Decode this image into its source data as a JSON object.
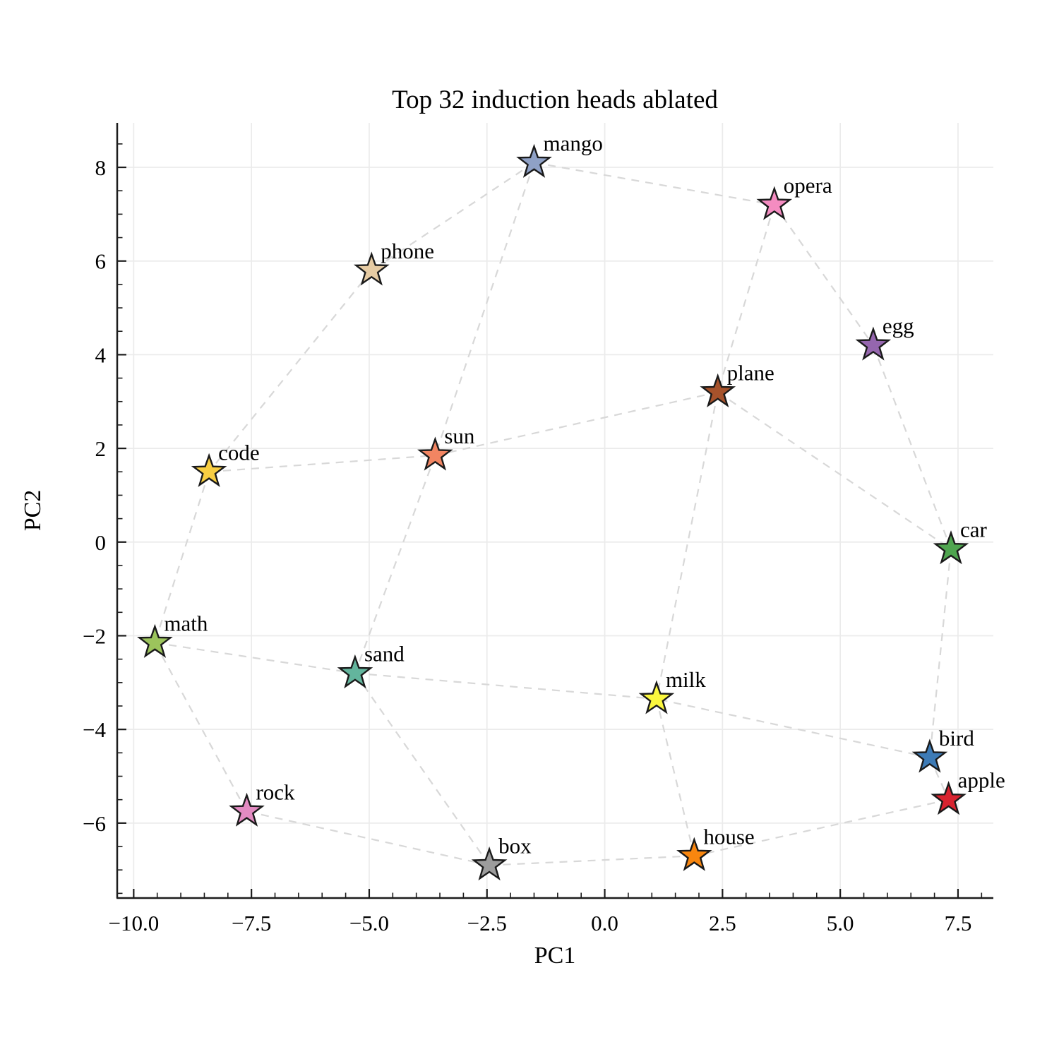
{
  "title": "Top 32 induction heads ablated",
  "chart_data": {
    "type": "scatter",
    "title": "Top 32 induction heads ablated",
    "xlabel": "PC1",
    "ylabel": "PC2",
    "xlim": [
      -10.35,
      8.25
    ],
    "ylim": [
      -7.6,
      8.95
    ],
    "grid": true,
    "legend": "none",
    "x_ticks": [
      -10.0,
      -7.5,
      -5.0,
      -2.5,
      0.0,
      2.5,
      5.0,
      7.5
    ],
    "x_tick_labels": [
      "−10.0",
      "−7.5",
      "−5.0",
      "−2.5",
      "0.0",
      "2.5",
      "5.0",
      "7.5"
    ],
    "y_ticks": [
      8,
      6,
      4,
      2,
      0,
      -2,
      -4,
      -6
    ],
    "y_tick_labels": [
      "8",
      "6",
      "4",
      "2",
      "0",
      "−2",
      "−4",
      "−6"
    ],
    "minor_tick_step": 0.5,
    "marker": "star",
    "points": [
      {
        "label": "mango",
        "x": -1.5,
        "y": 8.1,
        "color": "#8fa1c6"
      },
      {
        "label": "opera",
        "x": 3.6,
        "y": 7.2,
        "color": "#f48cc1"
      },
      {
        "label": "phone",
        "x": -4.95,
        "y": 5.8,
        "color": "#e6cba3"
      },
      {
        "label": "egg",
        "x": 5.7,
        "y": 4.2,
        "color": "#9566ae"
      },
      {
        "label": "plane",
        "x": 2.4,
        "y": 3.2,
        "color": "#a6522b"
      },
      {
        "label": "sun",
        "x": -3.6,
        "y": 1.85,
        "color": "#f28562"
      },
      {
        "label": "code",
        "x": -8.4,
        "y": 1.5,
        "color": "#f8ce42"
      },
      {
        "label": "car",
        "x": 7.35,
        "y": -0.15,
        "color": "#4fa54f"
      },
      {
        "label": "math",
        "x": -9.55,
        "y": -2.15,
        "color": "#9cc45c"
      },
      {
        "label": "sand",
        "x": -5.3,
        "y": -2.8,
        "color": "#63b59d"
      },
      {
        "label": "milk",
        "x": 1.1,
        "y": -3.35,
        "color": "#fbf73e"
      },
      {
        "label": "bird",
        "x": 6.9,
        "y": -4.6,
        "color": "#3d7bb6"
      },
      {
        "label": "apple",
        "x": 7.3,
        "y": -5.5,
        "color": "#d8232f"
      },
      {
        "label": "rock",
        "x": -7.6,
        "y": -5.75,
        "color": "#e38bc2"
      },
      {
        "label": "box",
        "x": -2.45,
        "y": -6.9,
        "color": "#9c9c9c"
      },
      {
        "label": "house",
        "x": 1.9,
        "y": -6.7,
        "color": "#f8860f"
      }
    ],
    "edges": [
      [
        "mango",
        "phone"
      ],
      [
        "mango",
        "opera"
      ],
      [
        "mango",
        "sun"
      ],
      [
        "opera",
        "egg"
      ],
      [
        "opera",
        "plane"
      ],
      [
        "egg",
        "car"
      ],
      [
        "phone",
        "code"
      ],
      [
        "code",
        "sun"
      ],
      [
        "code",
        "math"
      ],
      [
        "sun",
        "plane"
      ],
      [
        "sun",
        "sand"
      ],
      [
        "plane",
        "car"
      ],
      [
        "plane",
        "milk"
      ],
      [
        "car",
        "bird"
      ],
      [
        "bird",
        "apple"
      ],
      [
        "bird",
        "milk"
      ],
      [
        "apple",
        "house"
      ],
      [
        "house",
        "milk"
      ],
      [
        "house",
        "box"
      ],
      [
        "box",
        "rock"
      ],
      [
        "box",
        "sand"
      ],
      [
        "rock",
        "math"
      ],
      [
        "math",
        "sand"
      ],
      [
        "sand",
        "milk"
      ]
    ],
    "style": {
      "edge_color": "#d8d8d8",
      "grid_color": "#ebebeb",
      "spine_color": "#1c1c1c",
      "text_color": "#000000",
      "marker_edge_color": "#1a1a1a",
      "background": "#ffffff"
    }
  }
}
